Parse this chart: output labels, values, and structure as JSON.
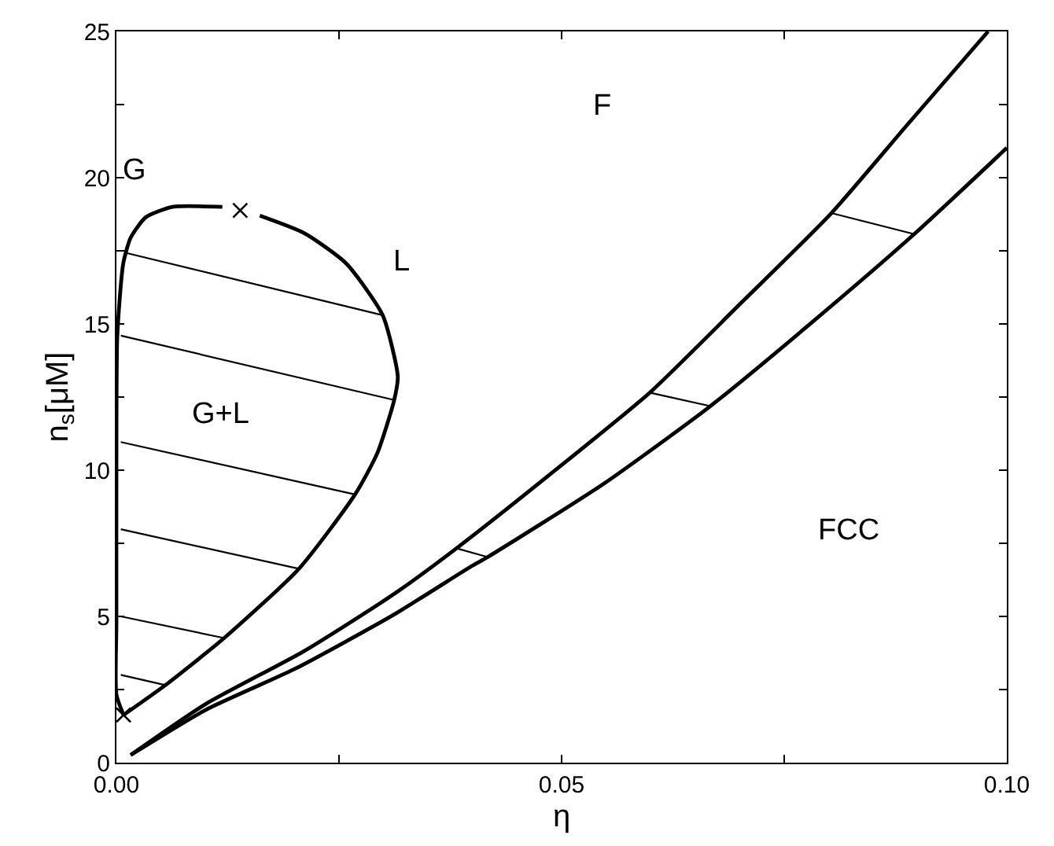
{
  "chart_data": {
    "type": "line",
    "xlabel": "η",
    "ylabel": "n$_{s}$[μM]",
    "xlim": [
      0,
      0.1
    ],
    "ylim": [
      0,
      25
    ],
    "xticks": [
      {
        "value": 0,
        "label": "0.00"
      },
      {
        "value": 0.025,
        "label": null
      },
      0.05,
      {
        "value": 0.075,
        "label": null
      },
      {
        "value": 0.1,
        "label": "0.10"
      }
    ],
    "yticks": [
      0,
      {
        "value": 2.5,
        "label": null
      },
      5,
      {
        "value": 7.5,
        "label": null
      },
      10,
      {
        "value": 12.5,
        "label": null
      },
      15,
      {
        "value": 17.5,
        "label": null
      },
      20,
      {
        "value": 22.5,
        "label": null
      },
      25
    ],
    "grid": false,
    "marker": "none",
    "line_style": "solid",
    "series": [
      {
        "color": "#000000",
        "x": [
          0.0008,
          0,
          0,
          0,
          0.0001,
          0.00077,
          0.0016,
          0.0033,
          0.0063,
          0.0119
        ],
        "values": [
          1.63,
          2.33,
          4.8,
          10.05,
          14.6,
          17.07,
          17.95,
          18.65,
          19.0,
          19.0
        ]
      },
      {
        "color": "#000000",
        "x": [
          0.0161,
          0.0211,
          0.0258,
          0.0299,
          0.0316,
          0.0312,
          0.0293,
          0.0268,
          0.0205,
          0.0121,
          0.0055,
          0.0008
        ],
        "values": [
          18.7,
          18.1,
          17.07,
          15.3,
          13.2,
          12.4,
          10.58,
          9.17,
          6.63,
          4.26,
          2.65,
          1.63
        ]
      },
      {
        "color": "#000000",
        "x": [
          0.0005,
          0.0055
        ],
        "values": [
          3.0,
          2.65
        ]
      },
      {
        "color": "#000000",
        "x": [
          0.0005,
          0.0121
        ],
        "values": [
          5.0,
          4.26
        ]
      },
      {
        "color": "#000000",
        "x": [
          0.0005,
          0.0205
        ],
        "values": [
          7.98,
          6.63
        ]
      },
      {
        "color": "#000000",
        "x": [
          0.0005,
          0.0268
        ],
        "values": [
          10.96,
          9.17
        ]
      },
      {
        "color": "#000000",
        "x": [
          0.0005,
          0.0312
        ],
        "values": [
          14.6,
          12.4
        ]
      },
      {
        "color": "#000000",
        "x": [
          0.0012,
          0.0299
        ],
        "values": [
          17.42,
          15.3
        ]
      },
      {
        "color": "#000000",
        "x": [
          0.0016,
          0.01,
          0.021,
          0.0311,
          0.0382,
          0.0488,
          0.0599,
          0.07,
          0.0803,
          0.0888,
          0.0979
        ],
        "values": [
          0.26,
          2.0,
          3.8,
          5.75,
          7.33,
          9.88,
          12.65,
          15.67,
          18.79,
          21.8,
          25.0
        ]
      },
      {
        "color": "#000000",
        "x": [
          0.0016,
          0.01,
          0.02,
          0.0311,
          0.0399,
          0.0417,
          0.0547,
          0.0667,
          0.0781,
          0.0896,
          0.1
        ],
        "values": [
          0.26,
          1.8,
          3.2,
          5.05,
          6.72,
          7.03,
          9.53,
          12.19,
          15.05,
          18.07,
          21.02
        ]
      },
      {
        "color": "#000000",
        "x": [
          0.0382,
          0.0417
        ],
        "values": [
          7.33,
          7.03
        ]
      },
      {
        "color": "#000000",
        "x": [
          0.0599,
          0.0667
        ],
        "values": [
          12.65,
          12.19
        ]
      },
      {
        "color": "#000000",
        "x": [
          0.0803,
          0.0896
        ],
        "values": [
          18.79,
          18.07
        ]
      },
      {
        "type": "scatter",
        "marker": "cross",
        "color": "#000000",
        "x": [
          0.0139,
          0.0008
        ],
        "values": [
          18.88,
          1.63
        ]
      }
    ],
    "annotations": [
      "G",
      "L",
      "G+L",
      "F",
      "FCC"
    ]
  }
}
